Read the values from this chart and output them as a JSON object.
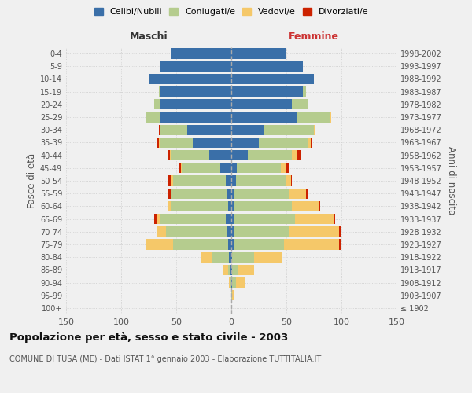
{
  "age_groups": [
    "100+",
    "95-99",
    "90-94",
    "85-89",
    "80-84",
    "75-79",
    "70-74",
    "65-69",
    "60-64",
    "55-59",
    "50-54",
    "45-49",
    "40-44",
    "35-39",
    "30-34",
    "25-29",
    "20-24",
    "15-19",
    "10-14",
    "5-9",
    "0-4"
  ],
  "birth_years": [
    "≤ 1902",
    "1903-1907",
    "1908-1912",
    "1913-1917",
    "1918-1922",
    "1923-1927",
    "1928-1932",
    "1933-1937",
    "1938-1942",
    "1943-1947",
    "1948-1952",
    "1953-1957",
    "1958-1962",
    "1963-1967",
    "1968-1972",
    "1973-1977",
    "1978-1982",
    "1983-1987",
    "1988-1992",
    "1993-1997",
    "1998-2002"
  ],
  "males": {
    "celibi": [
      0,
      0,
      0,
      1,
      2,
      3,
      4,
      5,
      3,
      4,
      5,
      10,
      20,
      35,
      40,
      65,
      65,
      65,
      75,
      65,
      55
    ],
    "coniugati": [
      0,
      0,
      1,
      2,
      15,
      50,
      55,
      60,
      52,
      50,
      48,
      35,
      35,
      30,
      25,
      12,
      5,
      1,
      0,
      0,
      0
    ],
    "vedovi": [
      0,
      0,
      1,
      5,
      10,
      25,
      8,
      3,
      2,
      1,
      1,
      1,
      1,
      1,
      0,
      0,
      0,
      0,
      0,
      0,
      0
    ],
    "divorziati": [
      0,
      0,
      0,
      0,
      0,
      0,
      0,
      2,
      1,
      3,
      4,
      1,
      1,
      2,
      1,
      0,
      0,
      0,
      0,
      0,
      0
    ]
  },
  "females": {
    "nubili": [
      0,
      0,
      1,
      1,
      1,
      3,
      3,
      3,
      3,
      3,
      4,
      5,
      15,
      25,
      30,
      60,
      55,
      65,
      75,
      65,
      50
    ],
    "coniugate": [
      0,
      1,
      3,
      5,
      20,
      45,
      50,
      55,
      52,
      50,
      45,
      40,
      40,
      45,
      45,
      30,
      15,
      3,
      0,
      0,
      0
    ],
    "vedove": [
      0,
      2,
      8,
      15,
      25,
      50,
      45,
      35,
      25,
      15,
      5,
      5,
      5,
      2,
      1,
      1,
      0,
      0,
      0,
      0,
      0
    ],
    "divorziate": [
      0,
      0,
      0,
      0,
      0,
      1,
      2,
      1,
      1,
      1,
      1,
      2,
      3,
      1,
      0,
      0,
      0,
      0,
      0,
      0,
      0
    ]
  },
  "colors": {
    "celibi": "#3a6fa8",
    "coniugati": "#b5cc8e",
    "vedovi": "#f5c869",
    "divorziati": "#cc2200"
  },
  "xlim": 150,
  "title": "Popolazione per età, sesso e stato civile - 2003",
  "subtitle": "COMUNE DI TUSA (ME) - Dati ISTAT 1° gennaio 2003 - Elaborazione TUTTITALIA.IT",
  "ylabel_left": "Fasce di età",
  "ylabel_right": "Anni di nascita",
  "xlabel_maschi": "Maschi",
  "xlabel_femmine": "Femmine",
  "legend_labels": [
    "Celibi/Nubili",
    "Coniugati/e",
    "Vedovi/e",
    "Divorziati/e"
  ],
  "bg_color": "#f0f0f0",
  "plot_bg": "#f0f0f0"
}
